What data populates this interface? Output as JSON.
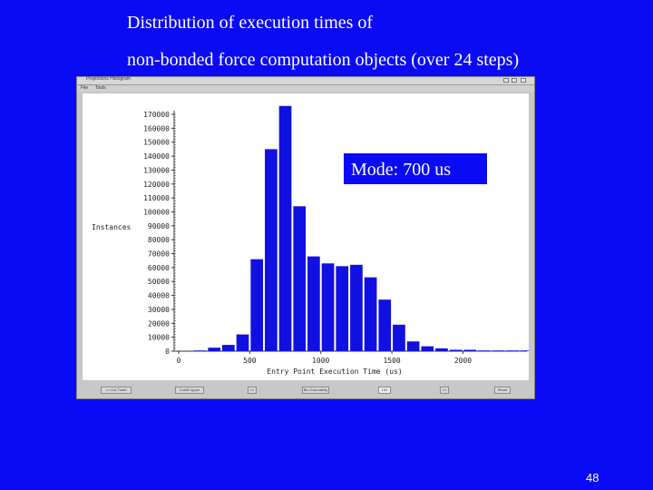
{
  "slide": {
    "title_line1": "Distribution of execution times of",
    "title_line2": "non-bonded force computation objects (over 24 steps)",
    "page_number": "48"
  },
  "callout": {
    "text": "Mode: 700 us"
  },
  "window": {
    "title": "Projections Histogram",
    "menu": [
      "File",
      "Tools"
    ],
    "controls": [
      {
        "label": "<< Cut Trash"
      },
      {
        "label": "Cutoff Upper"
      },
      {
        "label": "<<"
      },
      {
        "label": "Bin Granularity"
      },
      {
        "label": "100"
      },
      {
        "label": ">>"
      },
      {
        "label": "Reset"
      }
    ]
  },
  "colors": {
    "background": "#0a0af5",
    "bar": "#1010e0",
    "plot_bg": "#ffffff"
  },
  "chart_data": {
    "type": "bar",
    "xlabel": "Entry Point Execution Time (us)",
    "ylabel": "Instances",
    "xlim": [
      0,
      2450
    ],
    "ylim": [
      0,
      170000
    ],
    "x_ticks": [
      0,
      500,
      1000,
      1500,
      2000
    ],
    "y_ticks": [
      0,
      10000,
      20000,
      30000,
      40000,
      50000,
      60000,
      70000,
      80000,
      90000,
      100000,
      110000,
      120000,
      130000,
      140000,
      150000,
      160000,
      170000
    ],
    "bin_width": 100,
    "bins": [
      0,
      100,
      200,
      300,
      400,
      500,
      600,
      700,
      800,
      900,
      1000,
      1100,
      1200,
      1300,
      1400,
      1500,
      1600,
      1700,
      1800,
      1900,
      2000,
      2100,
      2200,
      2300,
      2400
    ],
    "values": [
      0,
      500,
      2500,
      4500,
      12000,
      66000,
      145000,
      176000,
      104000,
      68000,
      63000,
      61000,
      62000,
      53000,
      37000,
      19000,
      7000,
      3500,
      2000,
      1000,
      1000,
      500,
      500,
      500,
      500
    ]
  }
}
